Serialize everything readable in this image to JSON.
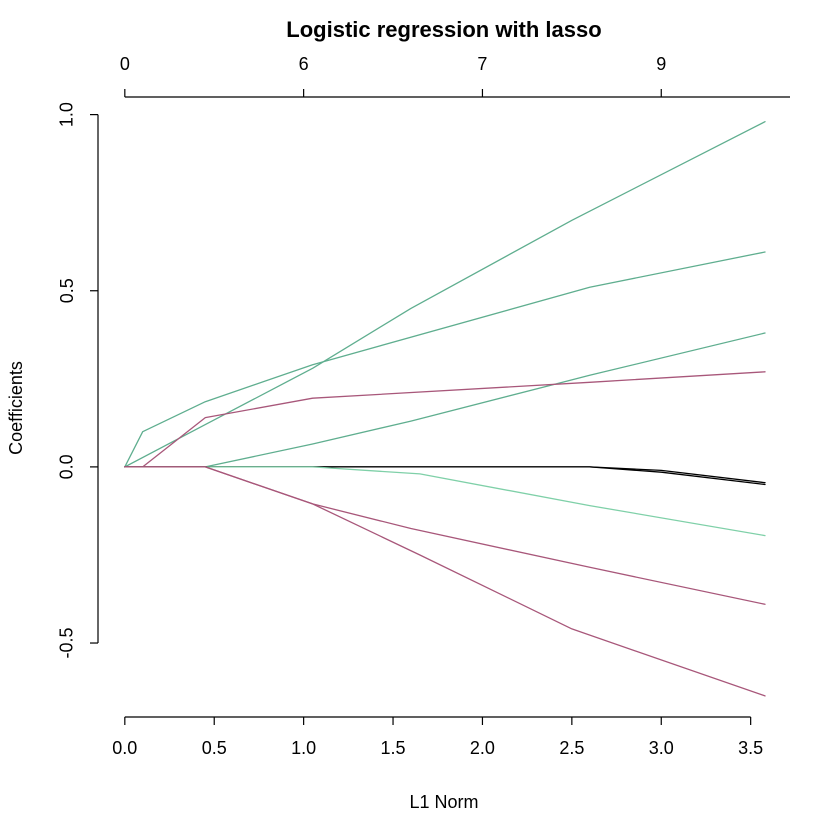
{
  "chart_data": {
    "type": "line",
    "title": "Logistic regression with lasso",
    "xlabel": "L1 Norm",
    "ylabel": "Coefficients",
    "xlim": [
      -0.15,
      3.72
    ],
    "ylim": [
      -0.71,
      1.05
    ],
    "x_ticks": [
      0.0,
      0.5,
      1.0,
      1.5,
      2.0,
      2.5,
      3.0,
      3.5
    ],
    "x_tick_labels": [
      "0.0",
      "0.5",
      "1.0",
      "1.5",
      "2.0",
      "2.5",
      "3.0",
      "3.5"
    ],
    "y_ticks": [
      -0.5,
      0.0,
      0.5,
      1.0
    ],
    "y_tick_labels": [
      "-0.5",
      "0.0",
      "0.5",
      "1.0"
    ],
    "top_axis": {
      "ticks": [
        0.0,
        1.0,
        2.0,
        3.0
      ],
      "labels": [
        "0",
        "6",
        "7",
        "9"
      ]
    },
    "grid": false,
    "legend": "none",
    "colors": {
      "green": "#5fae8f",
      "light_green": "#7fd0a8",
      "mauve": "#a8577a",
      "black": "#000000"
    },
    "series": [
      {
        "color": "#5fae8f",
        "x": [
          0,
          0.45,
          1.05,
          1.6,
          2.5,
          3.58
        ],
        "y": [
          0,
          0.12,
          0.28,
          0.45,
          0.7,
          0.98
        ]
      },
      {
        "color": "#5fae8f",
        "x": [
          0,
          0.1,
          0.45,
          1.05,
          2.6,
          3.58
        ],
        "y": [
          0,
          0.1,
          0.185,
          0.29,
          0.51,
          0.61
        ]
      },
      {
        "color": "#5fae8f",
        "x": [
          0,
          0.45,
          1.05,
          1.6,
          2.6,
          3.58
        ],
        "y": [
          0,
          0.0,
          0.065,
          0.13,
          0.26,
          0.38
        ]
      },
      {
        "color": "#a8577a",
        "x": [
          0,
          0.1,
          0.45,
          1.05,
          2.6,
          3.58
        ],
        "y": [
          0,
          0.0,
          0.14,
          0.195,
          0.24,
          0.27
        ]
      },
      {
        "color": "#000000",
        "x": [
          0,
          0.45,
          1.05,
          2.6,
          3.0,
          3.58
        ],
        "y": [
          0,
          0.0,
          0.0,
          0.0,
          -0.01,
          -0.045
        ]
      },
      {
        "color": "#000000",
        "x": [
          0,
          0.45,
          1.05,
          2.6,
          3.0,
          3.58
        ],
        "y": [
          0,
          0.0,
          0.0,
          0.0,
          -0.015,
          -0.05
        ]
      },
      {
        "color": "#7fd0a8",
        "x": [
          0,
          0.45,
          1.05,
          1.65,
          2.6,
          3.58
        ],
        "y": [
          0,
          0.0,
          0.0,
          -0.02,
          -0.11,
          -0.195
        ]
      },
      {
        "color": "#a8577a",
        "x": [
          0,
          0.45,
          1.05,
          1.6,
          2.6,
          3.58
        ],
        "y": [
          0,
          0.0,
          -0.105,
          -0.175,
          -0.285,
          -0.39
        ]
      },
      {
        "color": "#a8577a",
        "x": [
          0,
          0.45,
          1.05,
          1.65,
          2.5,
          3.58
        ],
        "y": [
          0,
          0.0,
          -0.105,
          -0.25,
          -0.46,
          -0.65
        ]
      }
    ]
  }
}
